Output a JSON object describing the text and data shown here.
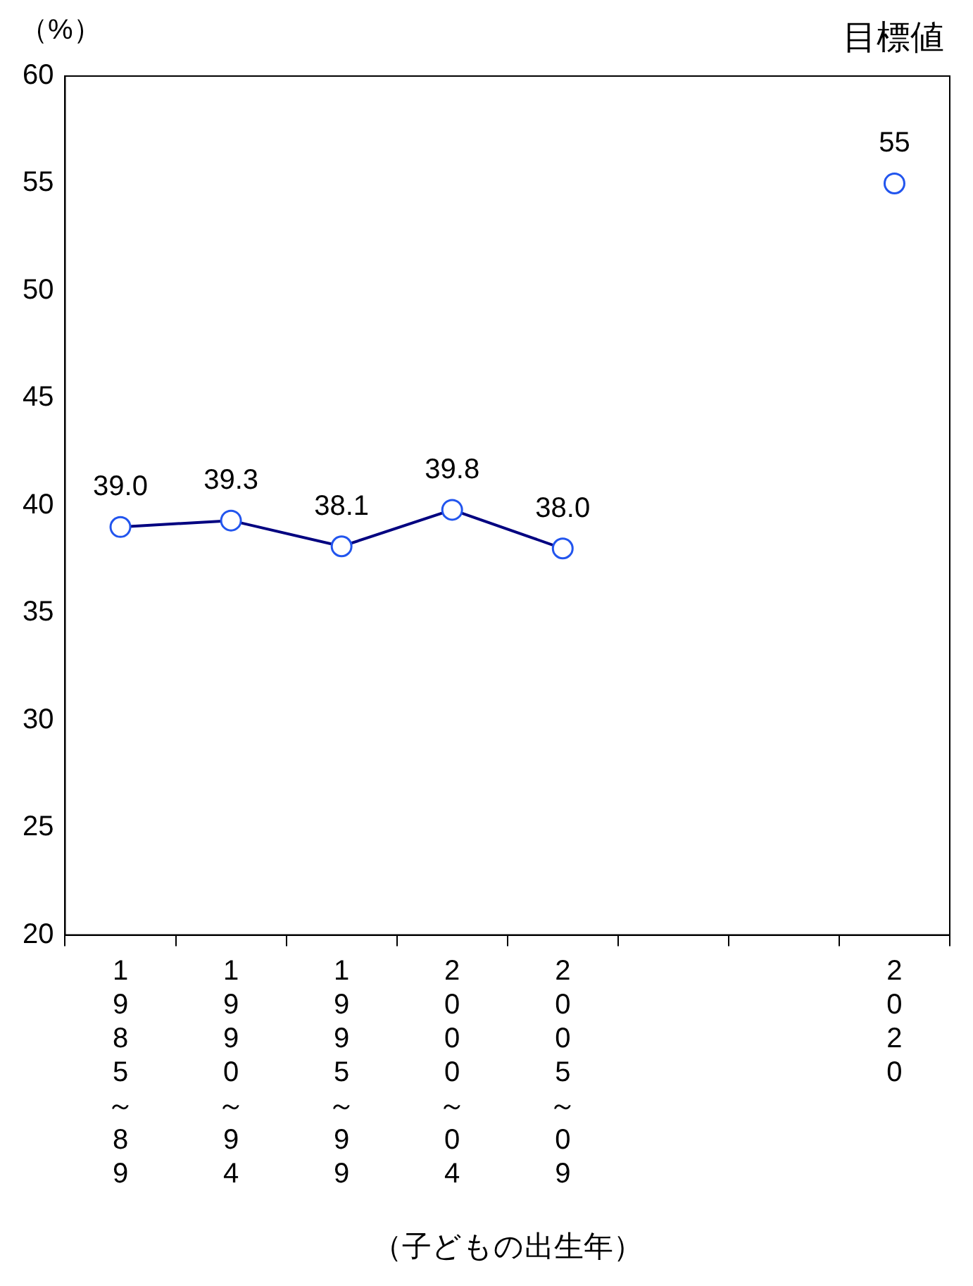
{
  "chart_data": {
    "type": "line",
    "ylabel": "（%）",
    "xlabel": "（子どもの出生年）",
    "categories": [
      "1985～89",
      "1990～94",
      "1995～99",
      "2000～04",
      "2005～09",
      null,
      null,
      "2020"
    ],
    "series": [
      {
        "color": "#000080",
        "values": [
          39.0,
          39.3,
          38.1,
          39.8,
          38.0,
          null,
          null,
          null
        ],
        "value_labels": [
          "39.0",
          "39.3",
          "38.1",
          "39.8",
          "38.0",
          null,
          null,
          null
        ]
      },
      {
        "type": "scatter",
        "color": "#2255ee",
        "values": [
          null,
          null,
          null,
          null,
          null,
          null,
          null,
          55
        ],
        "value_labels": [
          null,
          null,
          null,
          null,
          null,
          null,
          null,
          "55"
        ]
      }
    ],
    "annotations": [
      "目標値"
    ],
    "ylim": [
      20,
      60
    ],
    "yticks": [
      20,
      25,
      30,
      35,
      40,
      45,
      50,
      55,
      60
    ],
    "marker": "circle",
    "grid": false,
    "legend": false
  }
}
